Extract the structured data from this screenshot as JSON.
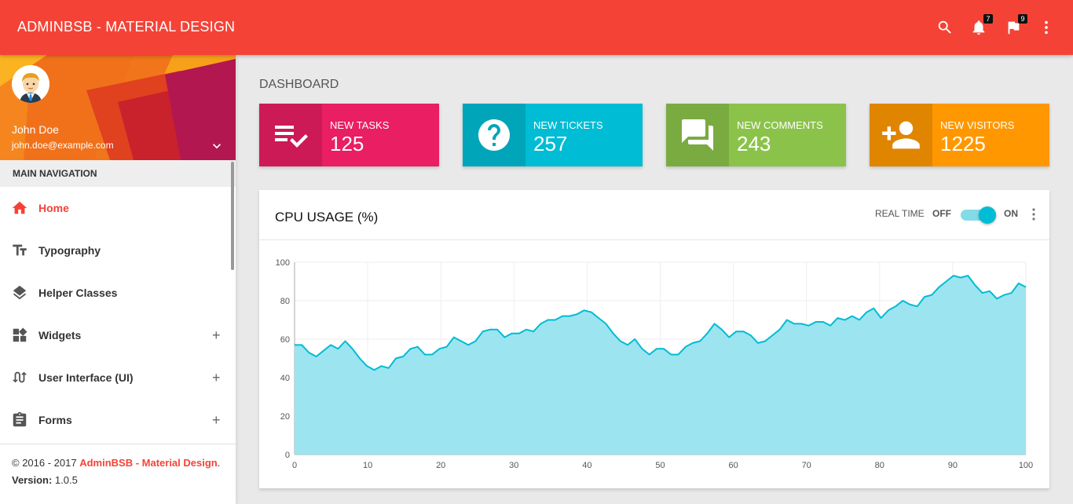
{
  "navbar": {
    "brand": "ADMINBSB - MATERIAL DESIGN",
    "notifications_count": "7",
    "tasks_count": "9",
    "bg_color": "#f44336"
  },
  "user": {
    "name": "John Doe",
    "email": "john.doe@example.com"
  },
  "sidebar": {
    "header": "MAIN NAVIGATION",
    "items": [
      {
        "label": "Home",
        "icon": "home-icon",
        "active": true,
        "expandable": false
      },
      {
        "label": "Typography",
        "icon": "text-fields-icon",
        "active": false,
        "expandable": false
      },
      {
        "label": "Helper Classes",
        "icon": "layers-icon",
        "active": false,
        "expandable": false
      },
      {
        "label": "Widgets",
        "icon": "widgets-icon",
        "active": false,
        "expandable": true,
        "toggle": "+"
      },
      {
        "label": "User Interface (UI)",
        "icon": "swap-calls-icon",
        "active": false,
        "expandable": true,
        "toggle": "+"
      },
      {
        "label": "Forms",
        "icon": "assignment-icon",
        "active": false,
        "expandable": true,
        "toggle": "+"
      }
    ]
  },
  "legal": {
    "copyright_prefix": "© 2016 - 2017 ",
    "copyright_brand": "AdminBSB - Material Design",
    "copyright_suffix": ".",
    "version_label": "Version: ",
    "version_value": "1.0.5"
  },
  "page": {
    "title": "DASHBOARD"
  },
  "info_boxes": [
    {
      "text": "NEW TASKS",
      "number": "125",
      "color": "#e91e63",
      "icon": "playlist-add-check-icon"
    },
    {
      "text": "NEW TICKETS",
      "number": "257",
      "color": "#00bcd4",
      "icon": "help-icon"
    },
    {
      "text": "NEW COMMENTS",
      "number": "243",
      "color": "#8bc34a",
      "icon": "forum-icon"
    },
    {
      "text": "NEW VISITORS",
      "number": "1225",
      "color": "#ff9800",
      "icon": "person-add-icon"
    }
  ],
  "cpu_card": {
    "title": "CPU USAGE (%)",
    "realtime_label": "REAL TIME",
    "off_label": "OFF",
    "on_label": "ON",
    "realtime_on": true
  },
  "chart_data": {
    "type": "area",
    "title": "",
    "xlabel": "",
    "ylabel": "",
    "xlim": [
      0,
      100
    ],
    "ylim": [
      0,
      100
    ],
    "x_ticks": [
      0,
      10,
      20,
      30,
      40,
      50,
      60,
      70,
      80,
      90,
      100
    ],
    "y_ticks": [
      0,
      20,
      40,
      60,
      80,
      100
    ],
    "grid": true,
    "line_color": "#00bcd4",
    "fill_color": "#9ce4ef",
    "series": [
      {
        "values": [
          57,
          57,
          53,
          51,
          54,
          57,
          55,
          59,
          55,
          50,
          46,
          44,
          46,
          45,
          50,
          51,
          55,
          56,
          52,
          52,
          55,
          56,
          61,
          59,
          57,
          59,
          64,
          65,
          65,
          61,
          63,
          63,
          65,
          64,
          68,
          70,
          70,
          72,
          72,
          73,
          75,
          74,
          71,
          68,
          63,
          59,
          57,
          60,
          55,
          52,
          55,
          55,
          52,
          52,
          56,
          58,
          59,
          63,
          68,
          65,
          61,
          64,
          64,
          62,
          58,
          59,
          62,
          65,
          70,
          68,
          68,
          67,
          69,
          69,
          67,
          71,
          70,
          72,
          70,
          74,
          76,
          71,
          75,
          77,
          80,
          78,
          77,
          82,
          83,
          87,
          90,
          93,
          92,
          93,
          88,
          84,
          85,
          81,
          83,
          84,
          89,
          87
        ]
      }
    ]
  }
}
